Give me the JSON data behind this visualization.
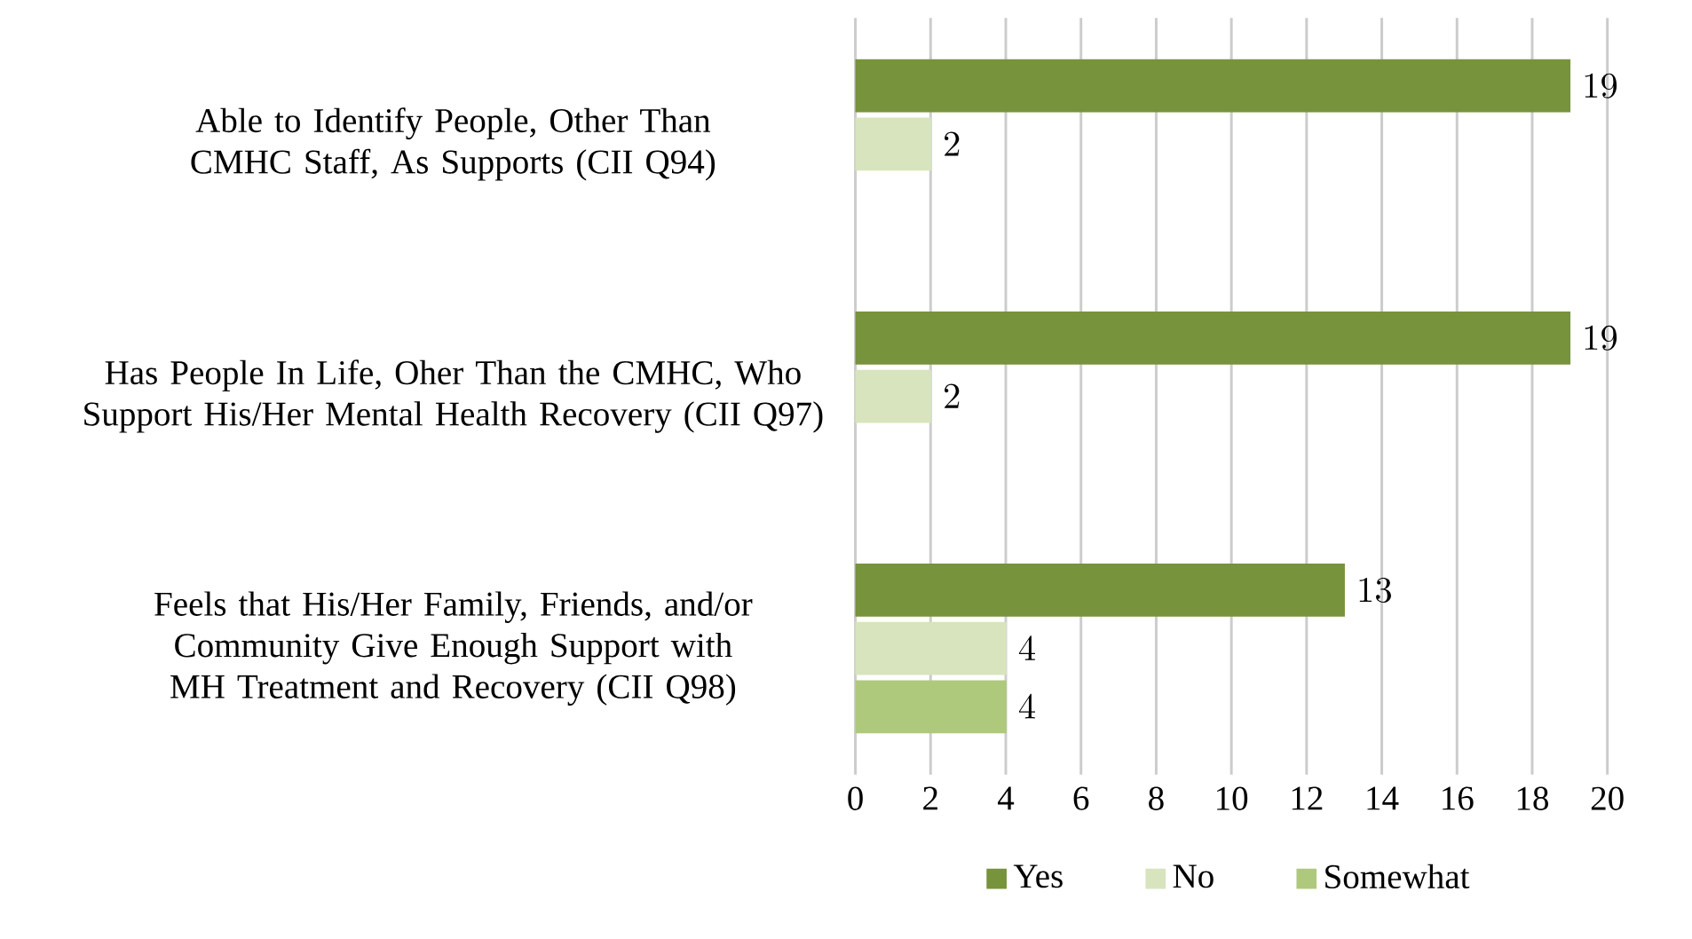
{
  "chart_data": {
    "type": "bar",
    "orientation": "horizontal",
    "categories": [
      "Able to Identify People, Other Than CMHC Staff, As Supports (CII Q94)",
      "Has People In Life, Oher Than the CMHC, Who Support His/Her Mental Health Recovery (CII Q97)",
      "Feels that His/Her Family, Friends, and/or Community Give Enough Support with MH Treatment and Recovery (CII Q98)"
    ],
    "series": [
      {
        "name": "Yes",
        "color": "#77933c",
        "values": [
          19,
          19,
          13
        ]
      },
      {
        "name": "No",
        "color": "#d7e4bd",
        "values": [
          2,
          2,
          4
        ]
      },
      {
        "name": "Somewhat",
        "color": "#aec97c",
        "values": [
          null,
          null,
          4
        ]
      }
    ],
    "xlim": [
      0,
      20
    ],
    "xticks": [
      0,
      2,
      4,
      6,
      8,
      10,
      12,
      14,
      16,
      18,
      20
    ],
    "grid": "x",
    "legend": "bottom",
    "data_labels": true
  }
}
